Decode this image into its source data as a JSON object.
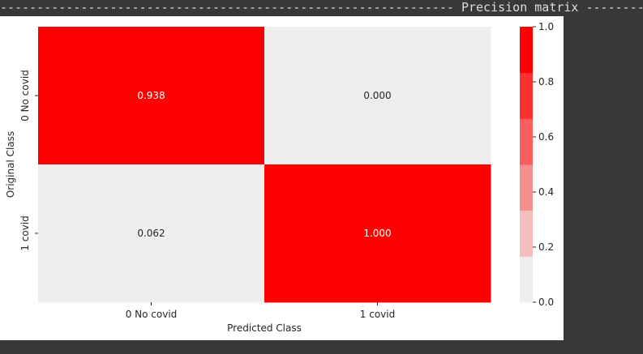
{
  "console": {
    "header_dashes_left": "--------------------------------------------------------------",
    "header_title": "Precision matrix",
    "header_dashes_right": "----------------"
  },
  "colors": {
    "low": "#f0eeec",
    "high": "#ff0000",
    "background": "#383838"
  },
  "chart_data": {
    "type": "heatmap",
    "rows": [
      "0 No covid",
      "1 covid"
    ],
    "cols": [
      "0 No covid",
      "1 covid"
    ],
    "values": [
      [
        0.938,
        0.0
      ],
      [
        0.062,
        1.0
      ]
    ],
    "cell_labels": [
      [
        "0.938",
        "0.000"
      ],
      [
        "0.062",
        "1.000"
      ]
    ],
    "xlabel": "Predicted Class",
    "ylabel": "Original Class",
    "colorbar": {
      "range": [
        0.0,
        1.0
      ],
      "ticks": [
        "0.0",
        "0.2",
        "0.4",
        "0.6",
        "0.8",
        "1.0"
      ],
      "tick_values": [
        0.0,
        0.2,
        0.4,
        0.6,
        0.8,
        1.0
      ],
      "levels": 6
    }
  }
}
